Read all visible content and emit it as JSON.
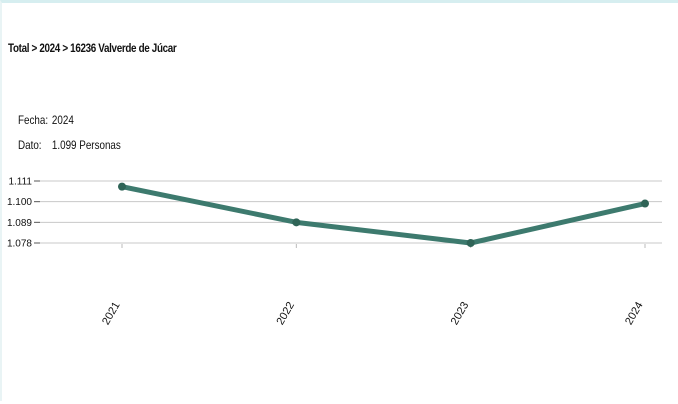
{
  "breadcrumb": "Total > 2024 > 16236 Valverde de Júcar",
  "info": {
    "fecha_label": "Fecha:",
    "fecha_value": "2024",
    "dato_label": "Dato:",
    "dato_value": "1.099 Personas"
  },
  "colors": {
    "line": "#3d7a6e",
    "grid": "#c8c8c8",
    "frame": "#d6eef0"
  },
  "chart_data": {
    "type": "line",
    "categories": [
      "2021",
      "2022",
      "2023",
      "2024"
    ],
    "series": [
      {
        "values": [
          1108,
          1089,
          1078,
          1099
        ]
      }
    ],
    "yticks": [
      "1.111",
      "1.100",
      "1.089",
      "1.078"
    ],
    "ytick_values": [
      1111,
      1100,
      1089,
      1078
    ],
    "ylim": [
      1078,
      1111
    ],
    "grid": true
  }
}
